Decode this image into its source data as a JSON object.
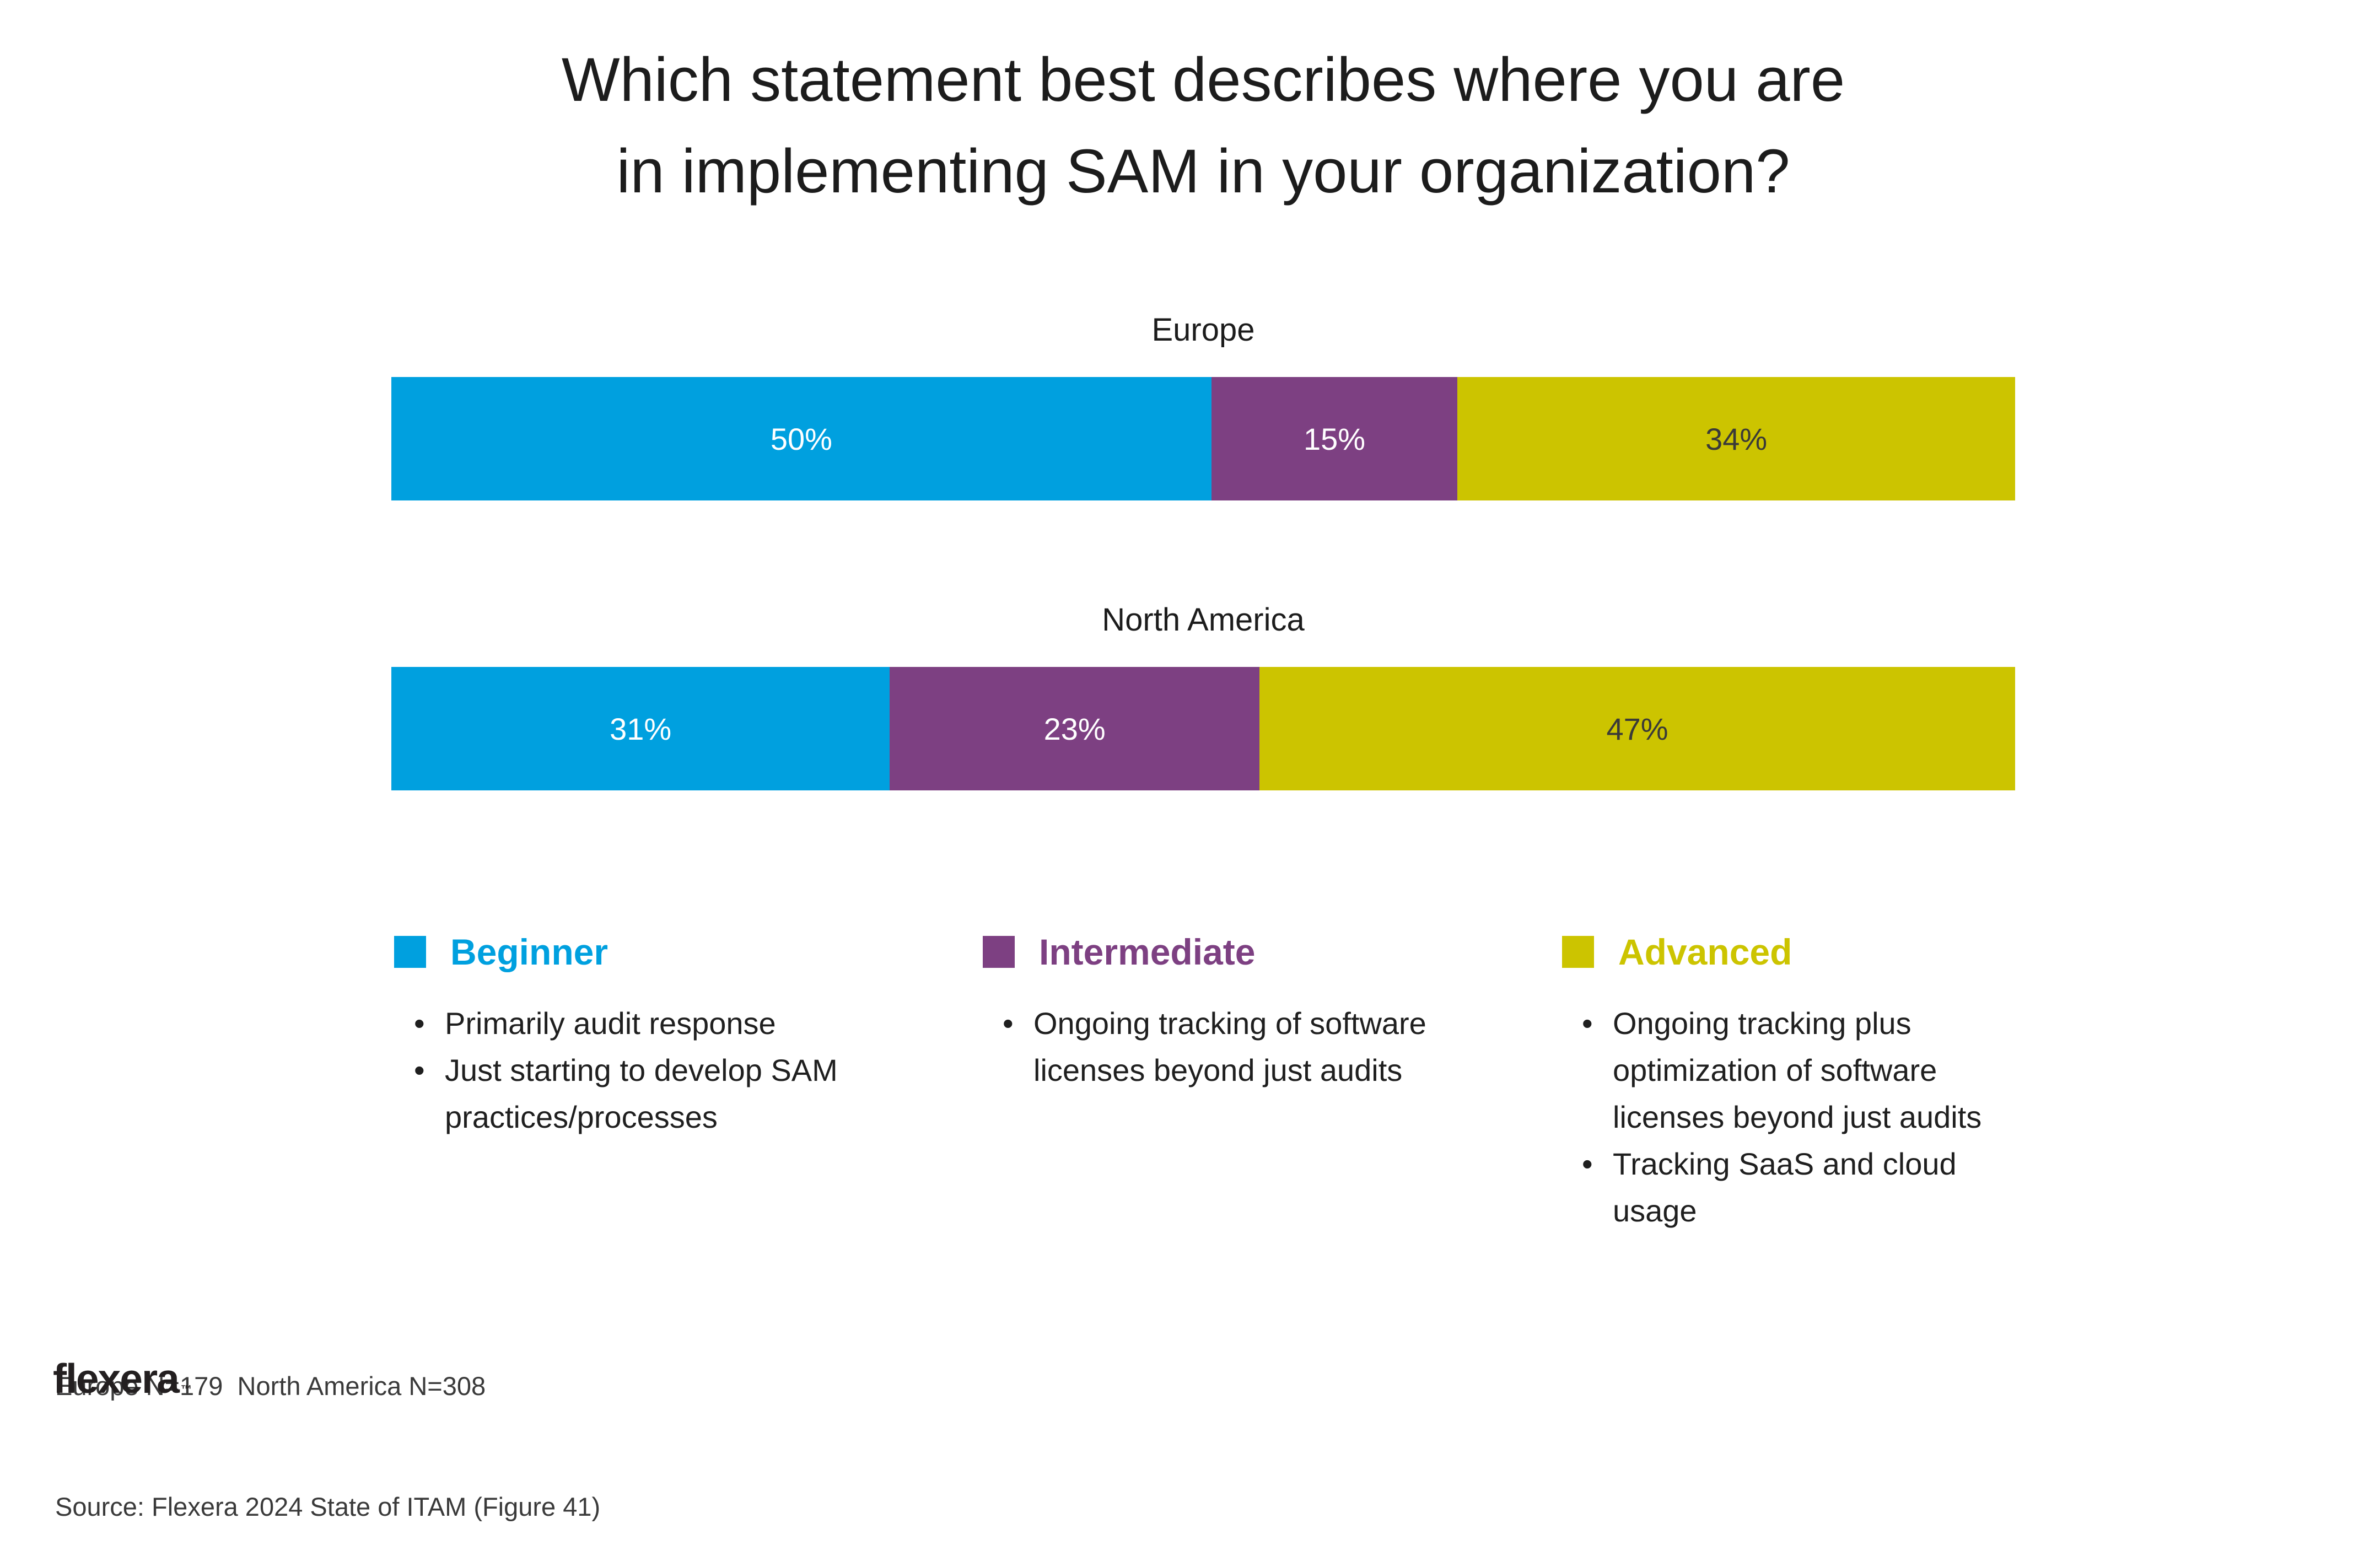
{
  "title": {
    "line1": "Which statement best describes where you are",
    "line2": "in implementing SAM in your organization?"
  },
  "chart_data": {
    "type": "bar",
    "subtype": "horizontal-stacked",
    "title": "Which statement best describes where you are in implementing SAM in your organization?",
    "categories": [
      "Europe",
      "North America"
    ],
    "series": [
      {
        "name": "Beginner",
        "color": "#00A0DF",
        "text_color": "#FFFFFF",
        "values": [
          50,
          31
        ]
      },
      {
        "name": "Intermediate",
        "color": "#7D4082",
        "text_color": "#FFFFFF",
        "values": [
          15,
          23
        ]
      },
      {
        "name": "Advanced",
        "color": "#CCC400",
        "text_color": "#3A3A38",
        "values": [
          34,
          47
        ]
      }
    ],
    "value_suffix": "%",
    "xlim": [
      0,
      100
    ],
    "grid": false,
    "legend_position": "bottom"
  },
  "legend": {
    "items": [
      {
        "label": "Beginner",
        "color": "#00A0DF",
        "bullets": [
          "Primarily audit response",
          "Just starting to develop SAM practices/processes"
        ]
      },
      {
        "label": "Intermediate",
        "color": "#7D4082",
        "bullets": [
          "Ongoing tracking of software licenses beyond just audits"
        ]
      },
      {
        "label": "Advanced",
        "color": "#CCC400",
        "bullets": [
          "Ongoing tracking plus optimization of software licenses beyond just audits",
          "Tracking SaaS and cloud usage"
        ]
      }
    ]
  },
  "footer": {
    "sample_note": "Europe N=179  North America N=308",
    "source_note": "Source: Flexera 2024 State of ITAM (Figure 41)",
    "logo_text": "flexera",
    "logo_tm": "™"
  }
}
